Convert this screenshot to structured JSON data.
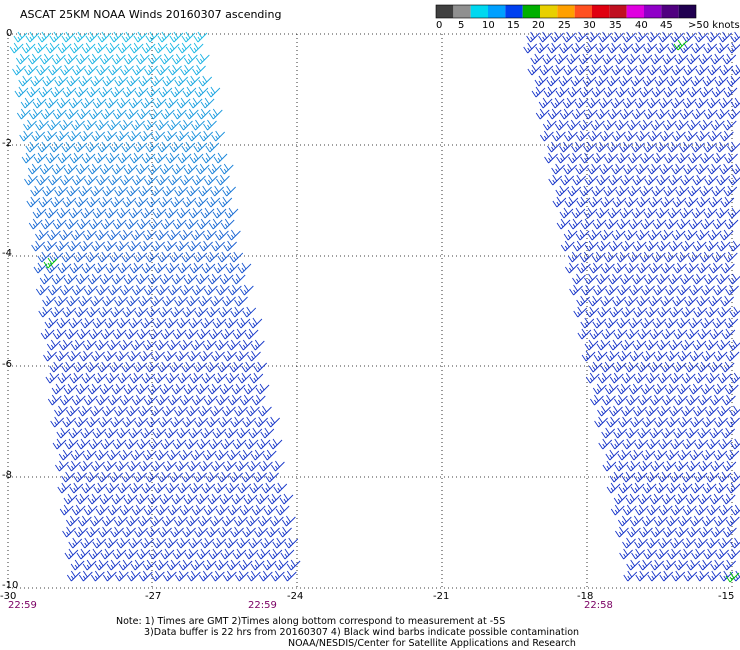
{
  "title": "ASCAT 25KM NOAA Winds 20160307 ascending",
  "colorbar": {
    "labels": [
      "0",
      "5",
      "10",
      "15",
      "20",
      "25",
      "30",
      "35",
      "40",
      "45",
      ">50 knots"
    ],
    "colors": [
      "#404040",
      "#909090",
      "#00d8f0",
      "#00a0ff",
      "#0040f0",
      "#00b000",
      "#e8d000",
      "#ffa000",
      "#ff5020",
      "#e00010",
      "#c01020",
      "#e000e0",
      "#9000c8",
      "#500080",
      "#200050"
    ]
  },
  "axes": {
    "y_labels": [
      "0",
      "-2",
      "-4",
      "-6",
      "-8",
      "-10"
    ],
    "x_labels": [
      "-30",
      "-27",
      "-24",
      "-21",
      "-18",
      "-15"
    ],
    "grid": "dotted"
  },
  "swaths": {
    "left_color_top": "#19bde6",
    "left_color_bottom": "#1535c8",
    "right_color": "#1432c8",
    "contamination_color": "#00c800"
  },
  "times": [
    "22:59",
    "22:59",
    "22:58"
  ],
  "notes": [
    "Note: 1) Times are GMT 2)Times along bottom correspond to measurement at -5S",
    "3)Data buffer is 22 hrs from 20160307 4) Black wind barbs indicate possible contamination",
    "NOAA/NESDIS/Center for Satellite Applications and Research"
  ]
}
